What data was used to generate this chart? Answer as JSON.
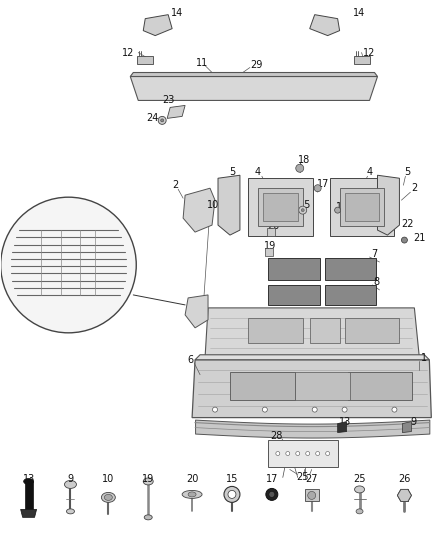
{
  "bg": "#ffffff",
  "lc": "#404040",
  "tc": "#111111",
  "fw": 4.38,
  "fh": 5.33,
  "dpi": 100
}
